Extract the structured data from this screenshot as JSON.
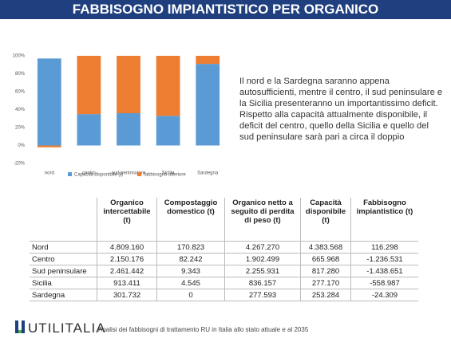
{
  "header": {
    "title": "FABBISOGNO IMPIANTISTICO PER ORGANICO"
  },
  "chart_data": {
    "type": "bar",
    "stacked": true,
    "categories": [
      "nord",
      "centro",
      "sud peninsulare",
      "Sicilia",
      "Sardegna"
    ],
    "series": [
      {
        "name": "Capacità disponibile (t)",
        "color": "#5b9bd5",
        "values": [
          97,
          35,
          36,
          33,
          91
        ]
      },
      {
        "name": "fabbisogno ulteriore",
        "color": "#ed7d31",
        "values": [
          -2,
          65,
          64,
          67,
          9
        ]
      }
    ],
    "ylim": [
      -20,
      100
    ],
    "yticks": [
      {
        "value": -20,
        "label": "-20%"
      },
      {
        "value": 0,
        "label": "0%"
      },
      {
        "value": 20,
        "label": "20%"
      },
      {
        "value": 40,
        "label": "40%"
      },
      {
        "value": 60,
        "label": "60%"
      },
      {
        "value": 80,
        "label": "80%"
      },
      {
        "value": 100,
        "label": "100%"
      }
    ],
    "grid": false,
    "legend": "bottom"
  },
  "text": {
    "paragraph": "Il nord e la Sardegna saranno appena autosufficienti, mentre il centro, il sud peninsulare e la Sicilia presenteranno un importantissimo deficit. Rispetto alla capacità attualmente disponibile, il deficit del centro, quello della Sicilia e quello del sud peninsulare sarà pari a circa il doppio"
  },
  "table": {
    "columns": [
      "Organico intercettabile (t)",
      "Compostaggio domestico (t)",
      "Organico netto a seguito di perdita di peso (t)",
      "Capacità disponibile (t)",
      "Fabbisogno impiantistico (t)"
    ],
    "rows": [
      [
        "Nord",
        "4.809.160",
        "170.823",
        "4.267.270",
        "4.383.568",
        "116.298"
      ],
      [
        "Centro",
        "2.150.176",
        "82.242",
        "1.902.499",
        "665.968",
        "-1.236.531"
      ],
      [
        "Sud peninsulare",
        "2.461.442",
        "9.343",
        "2.255.931",
        "817.280",
        "-1.438.651"
      ],
      [
        "Sicilia",
        "913.411",
        "4.545",
        "836.157",
        "277.170",
        "-558.987"
      ],
      [
        "Sardegna",
        "301.732",
        "0",
        "277.593",
        "253.284",
        "-24.309"
      ]
    ]
  },
  "footer": {
    "logo": "UTILITALIA",
    "caption": "Analisi dei fabbisogni di trattamento RU in Italia allo stato attuale e al 2035"
  }
}
